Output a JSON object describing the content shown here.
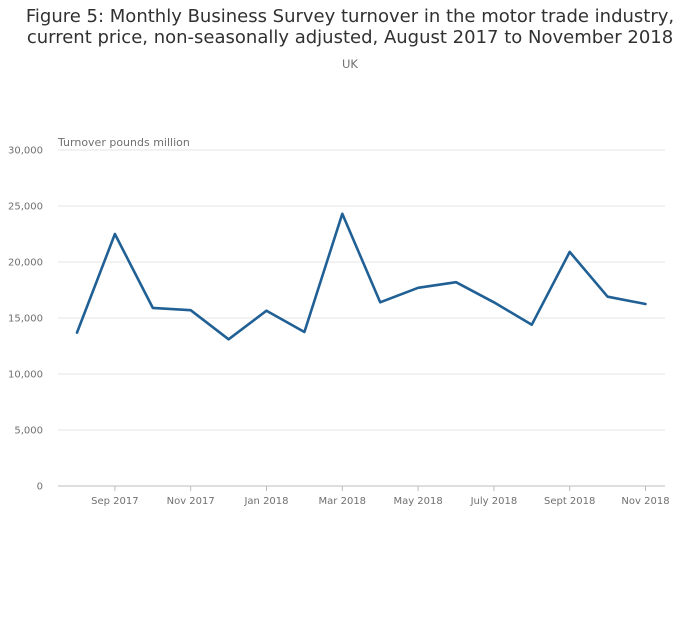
{
  "chart_data": {
    "type": "line",
    "title": "Figure 5: Monthly Business Survey turnover in the motor trade industry, current price, non-seasonally adjusted, August 2017 to November 2018",
    "subtitle": "UK",
    "ylabel": "Turnover pounds million",
    "xlabel": "",
    "ylim": [
      0,
      30000
    ],
    "yticks": [
      0,
      5000,
      10000,
      15000,
      20000,
      25000,
      30000
    ],
    "ytick_labels": [
      "0",
      "5,000",
      "10,000",
      "15,000",
      "20,000",
      "25,000",
      "30,000"
    ],
    "x": [
      "Aug 2017",
      "Sept 2017",
      "Oct 2017",
      "Nov 2017",
      "Dec 2017",
      "Jan 2018",
      "Feb 2018",
      "Mar 2018",
      "Apr 2018",
      "May 2018",
      "June 2018",
      "July 2018",
      "Aug 2018",
      "Sept 2018",
      "Oct 2018",
      "Nov 2018"
    ],
    "xtick_labels": [
      "Sep 2017",
      "Nov 2017",
      "Jan 2018",
      "Mar 2018",
      "May 2018",
      "July 2018",
      "Sept 2018",
      "Nov 2018"
    ],
    "xtick_months": [
      "Sept 2017",
      "Nov 2017",
      "Jan 2018",
      "Mar 2018",
      "May 2018",
      "July 2018",
      "Sept 2018",
      "Nov 2018"
    ],
    "series": [
      {
        "values": [
          13700,
          22500,
          15900,
          15700,
          13100,
          15650,
          13750,
          24300,
          16400,
          17700,
          18200,
          16400,
          14400,
          20900,
          16900,
          16250
        ]
      }
    ],
    "grid": true,
    "line_color": "#206095",
    "grid_color": "#e6e6e6",
    "axis_color": "#bebebe"
  }
}
